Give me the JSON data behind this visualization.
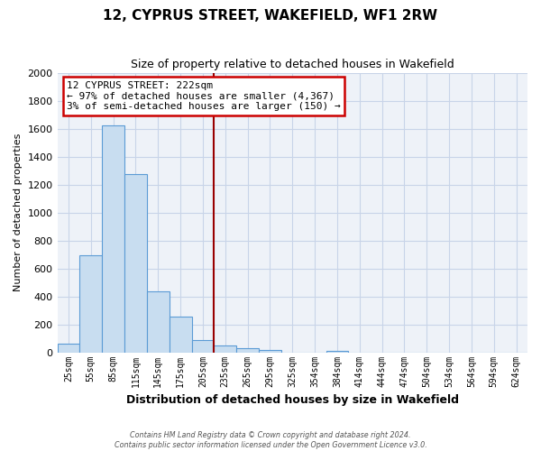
{
  "title": "12, CYPRUS STREET, WAKEFIELD, WF1 2RW",
  "subtitle": "Size of property relative to detached houses in Wakefield",
  "xlabel": "Distribution of detached houses by size in Wakefield",
  "ylabel": "Number of detached properties",
  "bar_labels": [
    "25sqm",
    "55sqm",
    "85sqm",
    "115sqm",
    "145sqm",
    "175sqm",
    "205sqm",
    "235sqm",
    "265sqm",
    "295sqm",
    "325sqm",
    "354sqm",
    "384sqm",
    "414sqm",
    "444sqm",
    "474sqm",
    "504sqm",
    "534sqm",
    "564sqm",
    "594sqm",
    "624sqm"
  ],
  "bar_values": [
    65,
    695,
    1625,
    1275,
    435,
    255,
    90,
    52,
    30,
    20,
    0,
    0,
    12,
    0,
    0,
    0,
    0,
    0,
    0,
    0,
    0
  ],
  "bar_color": "#c8ddf0",
  "bar_edge_color": "#5b9bd5",
  "ylim": [
    0,
    2000
  ],
  "yticks": [
    0,
    200,
    400,
    600,
    800,
    1000,
    1200,
    1400,
    1600,
    1800,
    2000
  ],
  "annotation_title": "12 CYPRUS STREET: 222sqm",
  "annotation_line1": "← 97% of detached houses are smaller (4,367)",
  "annotation_line2": "3% of semi-detached houses are larger (150) →",
  "vline_x_index": 6.5,
  "vline_color": "#990000",
  "footnote1": "Contains HM Land Registry data © Crown copyright and database right 2024.",
  "footnote2": "Contains public sector information licensed under the Open Government Licence v3.0.",
  "background_color": "#ffffff",
  "grid_color": "#c8d4e8",
  "plot_bg_color": "#eef2f8"
}
